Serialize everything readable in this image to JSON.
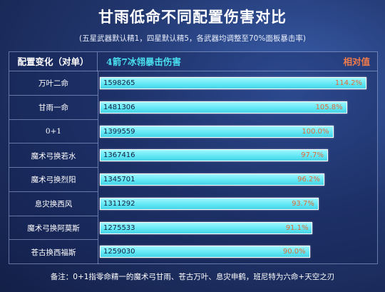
{
  "title": "甘雨低命不同配置伤害对比",
  "subtitle": "(五星武器默认精1，四星默认精5，各武器均调整至70%面板暴击率)",
  "header": {
    "left": "配置变化（对单）",
    "middle": "4箭7冰翎暴击伤害",
    "right": "相对值"
  },
  "note": "备注：0+1指零命精一的魔术弓甘雨、苍古万叶、息灾申鹤，班尼特为六命+天空之刃",
  "colors": {
    "bar": "#5ee6f4",
    "relative_text": "#e06a3a",
    "header_mid": "#49e0f0",
    "header_right": "#f07a4a"
  },
  "chart_data": {
    "type": "bar",
    "orientation": "horizontal",
    "categories": [
      "万叶二命",
      "甘雨一命",
      "0+1",
      "魔术弓换若水",
      "魔术弓换烈阳",
      "息灾换西风",
      "魔术弓换阿莫斯",
      "苍古换西福斯"
    ],
    "values": [
      1598265,
      1481306,
      1399559,
      1367416,
      1345701,
      1311292,
      1275533,
      1259030
    ],
    "relative": [
      "114.2%",
      "105.8%",
      "100.0%",
      "97.7%",
      "96.2%",
      "93.7%",
      "91.1%",
      "90.0%"
    ],
    "xlim": [
      0,
      1598265
    ],
    "grid": false,
    "legend": "none"
  }
}
